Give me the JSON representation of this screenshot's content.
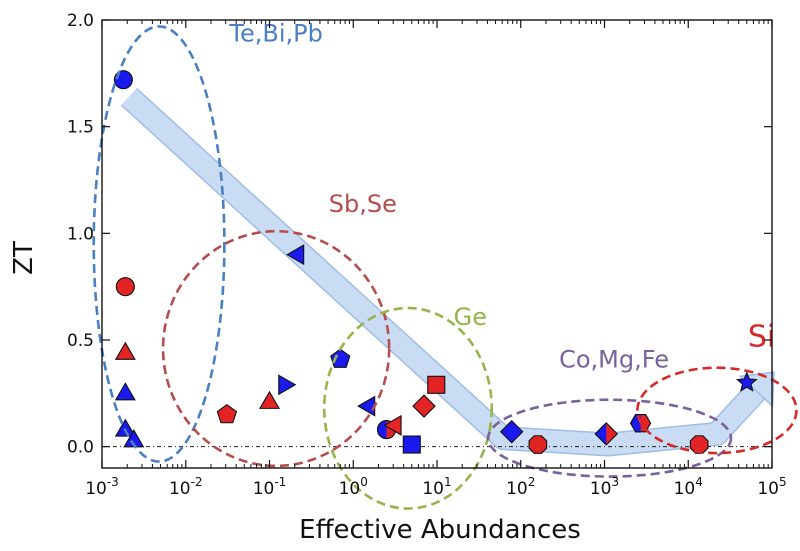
{
  "chart_data": {
    "type": "scatter",
    "title": "",
    "xlabel": "Effective Abundances",
    "ylabel": "ZT",
    "xscale": "log",
    "xlim": [
      0.001,
      100000
    ],
    "ylim": [
      -0.1,
      2.0
    ],
    "grid": false,
    "x_ticks": [
      {
        "value": 0.001,
        "base": "10",
        "exp": "-3"
      },
      {
        "value": 0.01,
        "base": "10",
        "exp": "-2"
      },
      {
        "value": 0.1,
        "base": "10",
        "exp": "-1"
      },
      {
        "value": 1,
        "base": "10",
        "exp": "0"
      },
      {
        "value": 10,
        "base": "10",
        "exp": "1"
      },
      {
        "value": 100,
        "base": "10",
        "exp": "2"
      },
      {
        "value": 1000,
        "base": "10",
        "exp": "3"
      },
      {
        "value": 10000,
        "base": "10",
        "exp": "4"
      },
      {
        "value": 100000,
        "base": "10",
        "exp": "5"
      }
    ],
    "y_ticks": [
      {
        "value": 0.0,
        "label": "0.0"
      },
      {
        "value": 0.5,
        "label": "0.5"
      },
      {
        "value": 1.0,
        "label": "1.0"
      },
      {
        "value": 1.5,
        "label": "1.5"
      },
      {
        "value": 2.0,
        "label": "2.0"
      }
    ],
    "points": [
      {
        "x": 0.0018,
        "y": 1.72,
        "shape": "circle",
        "color": "blue"
      },
      {
        "x": 0.0019,
        "y": 0.75,
        "shape": "circle",
        "color": "red"
      },
      {
        "x": 0.0019,
        "y": 0.44,
        "shape": "triangle-up",
        "color": "red"
      },
      {
        "x": 0.0019,
        "y": 0.25,
        "shape": "triangle-up",
        "color": "blue"
      },
      {
        "x": 0.0019,
        "y": 0.08,
        "shape": "triangle-up",
        "color": "blue"
      },
      {
        "x": 0.0024,
        "y": 0.03,
        "shape": "triangle-up",
        "color": "blue"
      },
      {
        "x": 0.031,
        "y": 0.15,
        "shape": "pentagon",
        "color": "red"
      },
      {
        "x": 0.1,
        "y": 0.21,
        "shape": "triangle-up",
        "color": "red"
      },
      {
        "x": 0.15,
        "y": 0.29,
        "shape": "triangle-right",
        "color": "blue"
      },
      {
        "x": 0.22,
        "y": 0.9,
        "shape": "triangle-left",
        "color": "blue"
      },
      {
        "x": 0.7,
        "y": 0.41,
        "shape": "pentagon",
        "color": "blue"
      },
      {
        "x": 1.55,
        "y": 0.19,
        "shape": "triangle-left",
        "color": "blue"
      },
      {
        "x": 2.5,
        "y": 0.08,
        "shape": "circle",
        "color": "mixed"
      },
      {
        "x": 3.2,
        "y": 0.1,
        "shape": "triangle-left",
        "color": "red"
      },
      {
        "x": 5.0,
        "y": 0.01,
        "shape": "square",
        "color": "blue"
      },
      {
        "x": 7.0,
        "y": 0.19,
        "shape": "diamond",
        "color": "red"
      },
      {
        "x": 9.8,
        "y": 0.29,
        "shape": "square",
        "color": "red"
      },
      {
        "x": 78,
        "y": 0.07,
        "shape": "diamond",
        "color": "blue"
      },
      {
        "x": 160,
        "y": 0.01,
        "shape": "octagon",
        "color": "red"
      },
      {
        "x": 1050,
        "y": 0.06,
        "shape": "diamond",
        "color": "mixed"
      },
      {
        "x": 2700,
        "y": 0.11,
        "shape": "hexagon",
        "color": "mixed"
      },
      {
        "x": 13500,
        "y": 0.01,
        "shape": "octagon",
        "color": "red"
      },
      {
        "x": 50000,
        "y": 0.3,
        "shape": "star",
        "color": "blue"
      }
    ],
    "groups": [
      {
        "label": "Te,Bi,Pb",
        "color": "#4a7fc1",
        "cx": 0.0048,
        "cy": 0.95,
        "rx_dec": 0.78,
        "ry": 1.02,
        "label_x": 0.12,
        "label_y": 1.9
      },
      {
        "label": "Sb,Se",
        "color": "#b54d4d",
        "cx": 0.12,
        "cy": 0.46,
        "rx_dec": 1.35,
        "ry": 0.55,
        "label_x": 1.3,
        "label_y": 1.1
      },
      {
        "label": "Ge",
        "color": "#96b44b",
        "cx": 4.5,
        "cy": 0.18,
        "rx_dec": 1.0,
        "ry": 0.47,
        "label_x": 25,
        "label_y": 0.57
      },
      {
        "label": "Co,Mg,Fe",
        "color": "#7a619b",
        "cx": 1150,
        "cy": 0.04,
        "rx_dec": 1.45,
        "ry": 0.18,
        "label_x": 1300,
        "label_y": 0.37
      },
      {
        "label": "Si",
        "color": "#d62a2a",
        "cx": 22000,
        "cy": 0.17,
        "rx_dec": 0.95,
        "ry": 0.2,
        "label_x": 75000,
        "label_y": 0.47
      }
    ],
    "trend_arrow": {
      "color": "#c9dcf3",
      "path": [
        {
          "x": 0.0021,
          "y": 1.64
        },
        {
          "x": 62,
          "y": 0.04
        },
        {
          "x": 1100,
          "y": 0.01
        },
        {
          "x": 22000,
          "y": 0.06
        },
        {
          "x": 65000,
          "y": 0.26
        }
      ]
    },
    "colors": {
      "blue": "#1a1aee",
      "red": "#e22424"
    }
  }
}
